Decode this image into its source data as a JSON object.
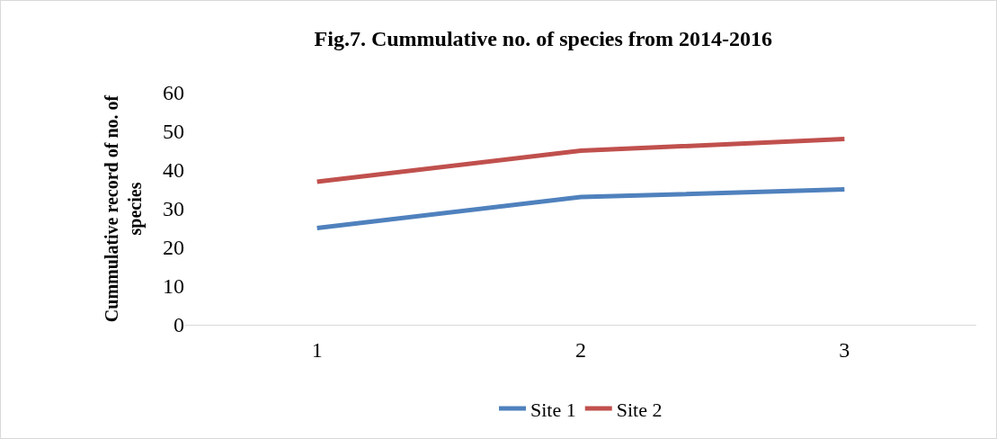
{
  "chart_data": {
    "type": "line",
    "title": "Fig.7. Cummulative no. of species from 2014-2016",
    "ylabel": "Cummulative record of no. of species",
    "categories": [
      "1",
      "2",
      "3"
    ],
    "series": [
      {
        "name": "Site 1",
        "color": "#4f81bd",
        "values": [
          25,
          33,
          35
        ]
      },
      {
        "name": "Site 2",
        "color": "#c0504d",
        "values": [
          37,
          45,
          48
        ]
      }
    ],
    "ylim": [
      0,
      60
    ],
    "yticks": [
      0,
      10,
      20,
      30,
      40,
      50,
      60
    ],
    "grid": false,
    "legend": "bottom",
    "marker": "none",
    "line_style": "solid"
  }
}
